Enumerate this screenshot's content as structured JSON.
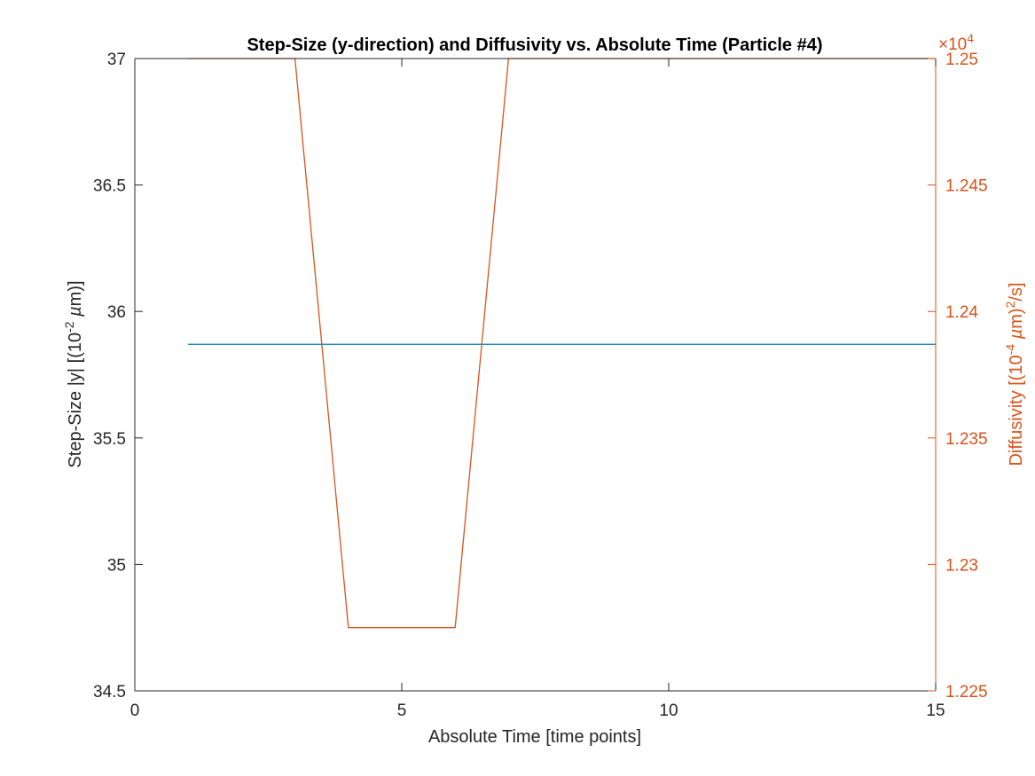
{
  "chart_data": {
    "type": "line",
    "title": "Step-Size (y-direction) and Diffusivity vs. Absolute Time (Particle #4)",
    "xlabel": "Absolute Time [time points]",
    "ylabel_left": "Step-Size |y| [(10^-2 µm)]",
    "ylabel_right": "Diffusivity [(10^-4 µm)^2/s]",
    "xlim": [
      0,
      15
    ],
    "ylim_left": [
      34.5,
      37
    ],
    "ylim_right": [
      1.225,
      1.25
    ],
    "x_ticks": [
      0,
      5,
      10,
      15
    ],
    "x_tick_labels": [
      "0",
      "5",
      "10",
      "15"
    ],
    "y_left_ticks": [
      34.5,
      35,
      35.5,
      36,
      36.5,
      37
    ],
    "y_left_tick_labels": [
      "34.5",
      "35",
      "35.5",
      "36",
      "36.5",
      "37"
    ],
    "y_right_ticks": [
      1.225,
      1.23,
      1.235,
      1.24,
      1.245,
      1.25
    ],
    "y_right_tick_labels": [
      "1.225",
      "1.23",
      "1.235",
      "1.24",
      "1.245",
      "1.25"
    ],
    "right_exponent_label": "×10^4",
    "grid": false,
    "colors": {
      "left": "#0072BD",
      "right": "#D95319",
      "axis": "#262626"
    },
    "series": [
      {
        "axis": "left",
        "x": [
          1,
          2,
          3,
          4,
          5,
          6,
          7,
          8,
          9,
          10,
          11,
          12,
          13,
          14,
          15
        ],
        "values": [
          35.87,
          35.87,
          35.87,
          35.87,
          35.87,
          35.87,
          35.87,
          35.87,
          35.87,
          35.87,
          35.87,
          35.87,
          35.87,
          35.87,
          35.87
        ]
      },
      {
        "axis": "right",
        "x": [
          1,
          2,
          3,
          4,
          5,
          6,
          7,
          8,
          9,
          10,
          11,
          12,
          13,
          14,
          15
        ],
        "values": [
          1.25,
          1.25,
          1.25,
          1.2275,
          1.2275,
          1.2275,
          1.25,
          1.25,
          1.25,
          1.25,
          1.25,
          1.25,
          1.25,
          1.25,
          1.25
        ]
      }
    ]
  }
}
